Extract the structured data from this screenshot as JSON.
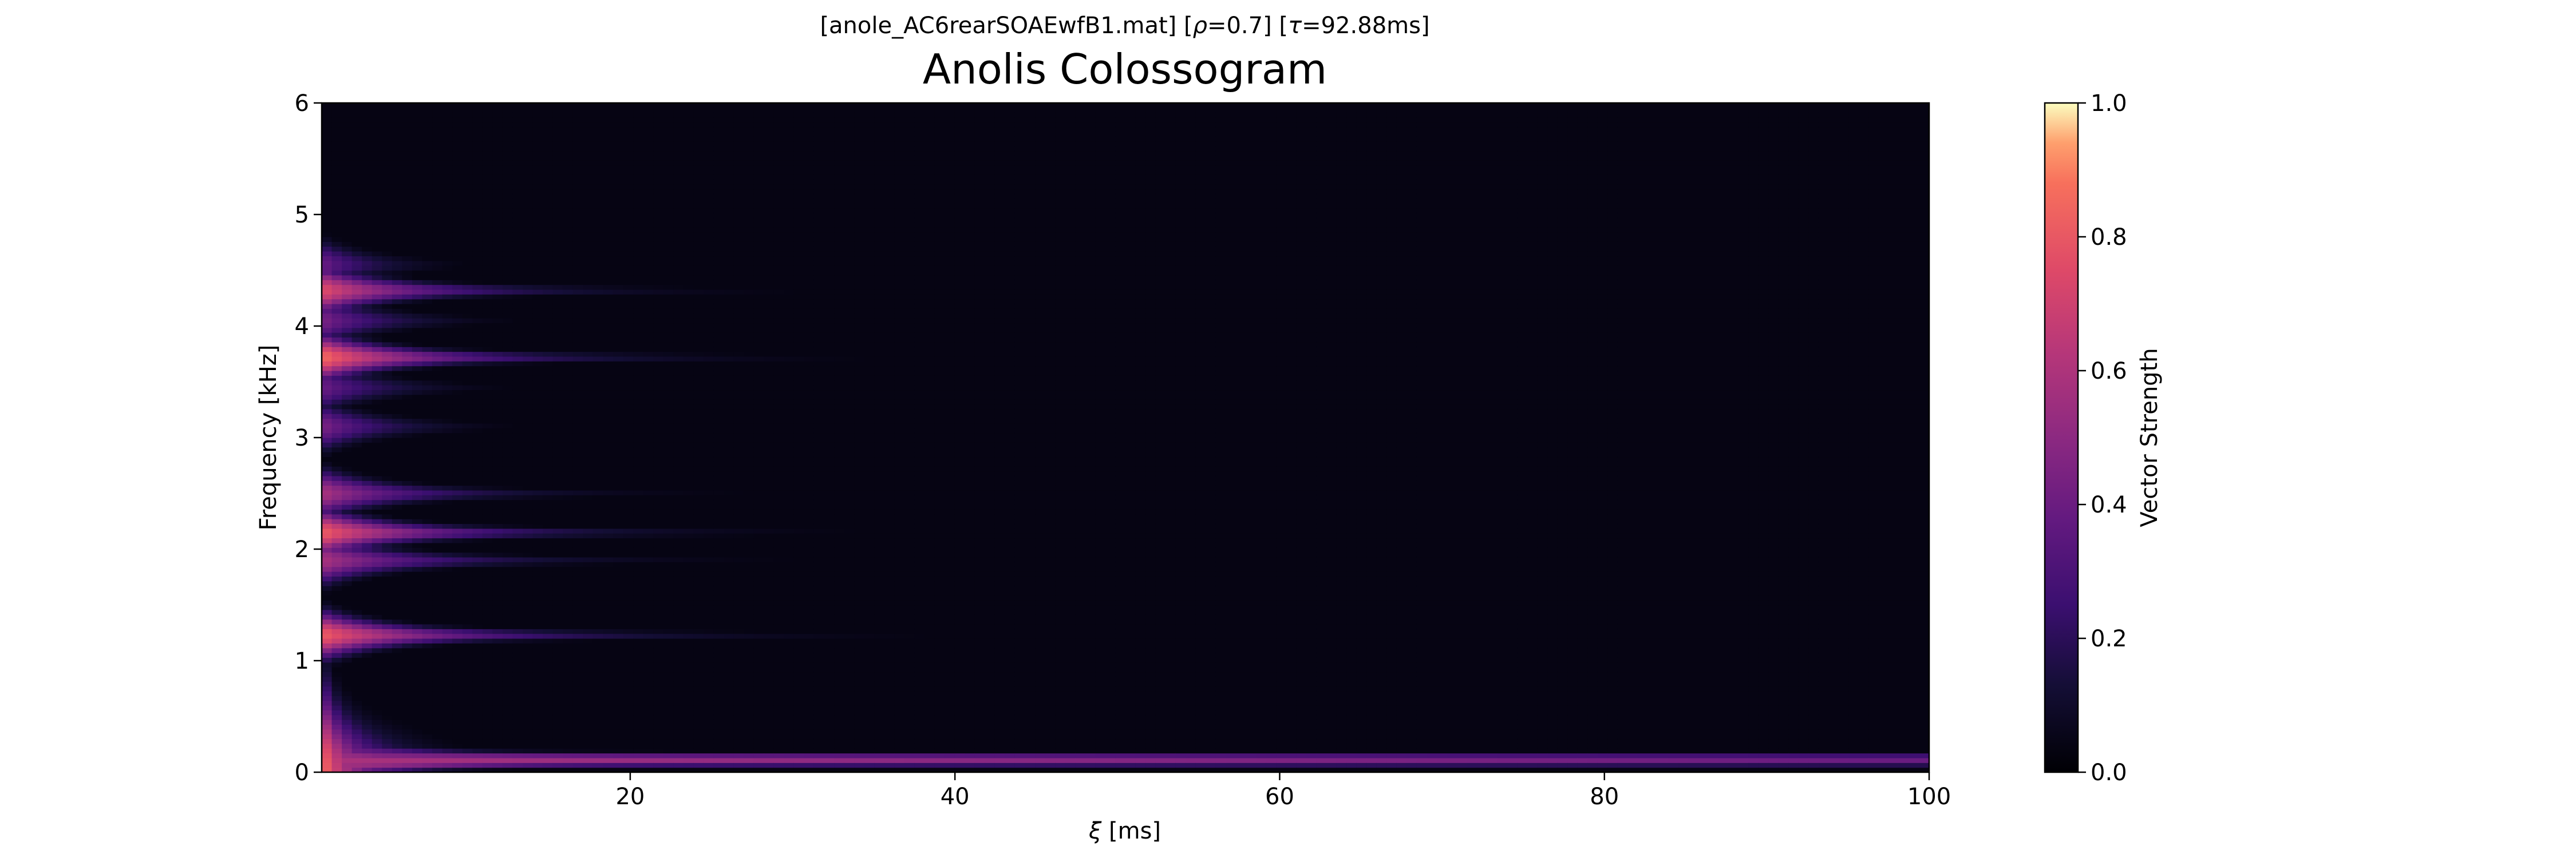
{
  "chart_data": {
    "type": "heatmap",
    "supertitle_parts": [
      "[anole_AC6rearSOAEwfB1.mat]   [",
      "ρ",
      "=0.7]   [",
      "τ",
      "=92.88ms]"
    ],
    "title": "Anolis Colossogram",
    "xlabel_parts": [
      "ξ",
      " [ms]"
    ],
    "ylabel": "Frequency [kHz]",
    "xlim": [
      1,
      100
    ],
    "ylim": [
      0,
      6
    ],
    "xticks": [
      20,
      40,
      60,
      80,
      100
    ],
    "yticks": [
      0,
      1,
      2,
      3,
      4,
      5,
      6
    ],
    "colormap": "magma",
    "colorbar": {
      "label": "Vector Strength",
      "range": [
        0.0,
        1.0
      ],
      "ticks": [
        "0.0",
        "0.2",
        "0.4",
        "0.6",
        "0.8",
        "1.0"
      ]
    },
    "background_level": 0.04,
    "low_frequency_ridge": {
      "freq_khz": 0.25,
      "peak": 0.88,
      "decay_ms": 3.5
    },
    "bands": [
      {
        "freq_khz": 0.1,
        "peak": 0.55,
        "decay_ms": 300
      },
      {
        "freq_khz": 0.13,
        "peak": 0.45,
        "decay_ms": 300
      },
      {
        "freq_khz": 1.23,
        "peak": 0.78,
        "decay_ms": 10
      },
      {
        "freq_khz": 1.9,
        "peak": 0.55,
        "decay_ms": 8
      },
      {
        "freq_khz": 2.15,
        "peak": 0.78,
        "decay_ms": 9
      },
      {
        "freq_khz": 2.5,
        "peak": 0.55,
        "decay_ms": 7
      },
      {
        "freq_khz": 3.1,
        "peak": 0.45,
        "decay_ms": 5
      },
      {
        "freq_khz": 3.45,
        "peak": 0.4,
        "decay_ms": 5
      },
      {
        "freq_khz": 3.72,
        "peak": 0.82,
        "decay_ms": 9
      },
      {
        "freq_khz": 4.05,
        "peak": 0.45,
        "decay_ms": 5
      },
      {
        "freq_khz": 4.32,
        "peak": 0.72,
        "decay_ms": 8
      },
      {
        "freq_khz": 4.55,
        "peak": 0.4,
        "decay_ms": 4
      }
    ],
    "magma_stops": [
      [
        0.0,
        "#000004"
      ],
      [
        0.13,
        "#140e36"
      ],
      [
        0.25,
        "#3b0f70"
      ],
      [
        0.38,
        "#641a80"
      ],
      [
        0.5,
        "#8c2981"
      ],
      [
        0.63,
        "#b73779"
      ],
      [
        0.75,
        "#de4968"
      ],
      [
        0.88,
        "#f7705c"
      ],
      [
        0.94,
        "#fe9f6d"
      ],
      [
        1.0,
        "#fcfdbf"
      ]
    ]
  }
}
